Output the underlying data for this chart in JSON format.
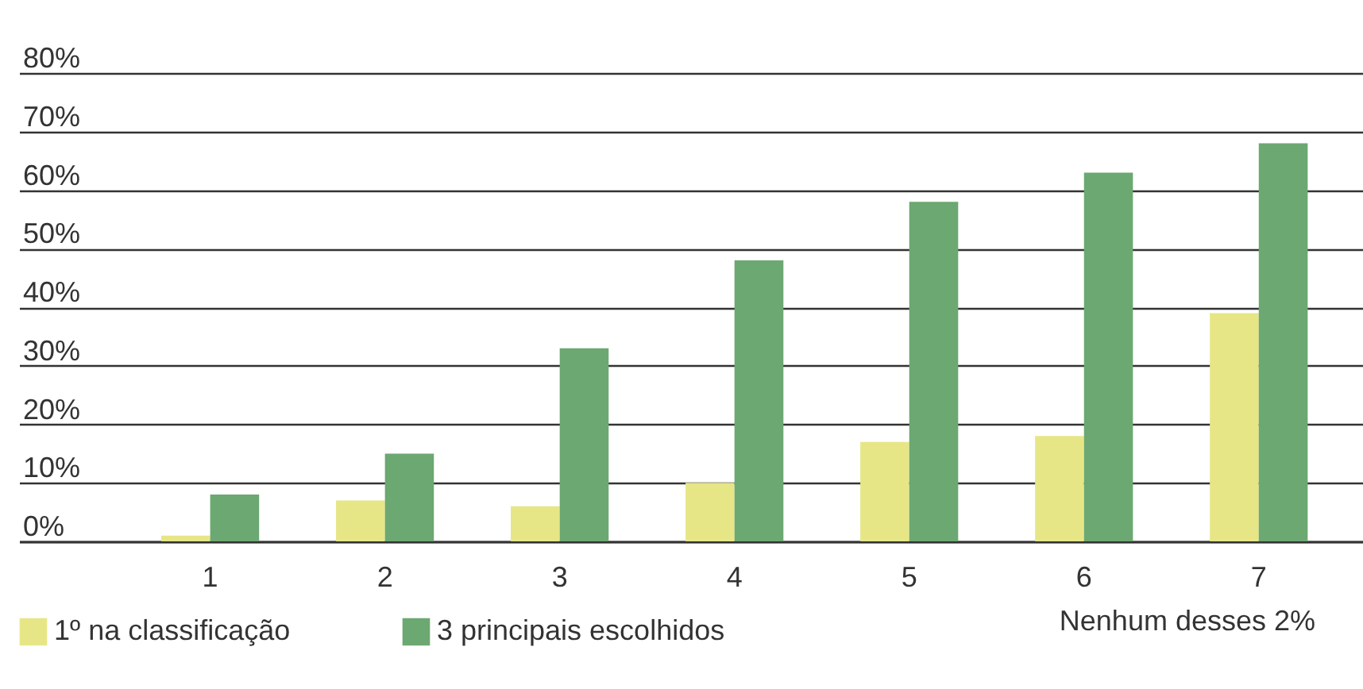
{
  "chart_data": {
    "type": "bar",
    "categories": [
      "1",
      "2",
      "3",
      "4",
      "5",
      "6",
      "7"
    ],
    "series": [
      {
        "name": "1º na classificação",
        "color": "#e6e687",
        "values": [
          1,
          7,
          6,
          10,
          17,
          18,
          39
        ]
      },
      {
        "name": "3 principais escolhidos",
        "color": "#6ca872",
        "values": [
          8,
          15,
          33,
          48,
          58,
          63,
          68
        ]
      }
    ],
    "ylim": [
      0,
      80
    ],
    "yticks": [
      {
        "value": 0,
        "label": "0%"
      },
      {
        "value": 10,
        "label": "10%"
      },
      {
        "value": 20,
        "label": "20%"
      },
      {
        "value": 30,
        "label": "30%"
      },
      {
        "value": 40,
        "label": "40%"
      },
      {
        "value": 50,
        "label": "50%"
      },
      {
        "value": 60,
        "label": "60%"
      },
      {
        "value": 70,
        "label": "70%"
      },
      {
        "value": 80,
        "label": "80%"
      }
    ],
    "grid": "y",
    "legend": "bottom",
    "annotations": [
      "Nenhum desses 2%"
    ]
  }
}
